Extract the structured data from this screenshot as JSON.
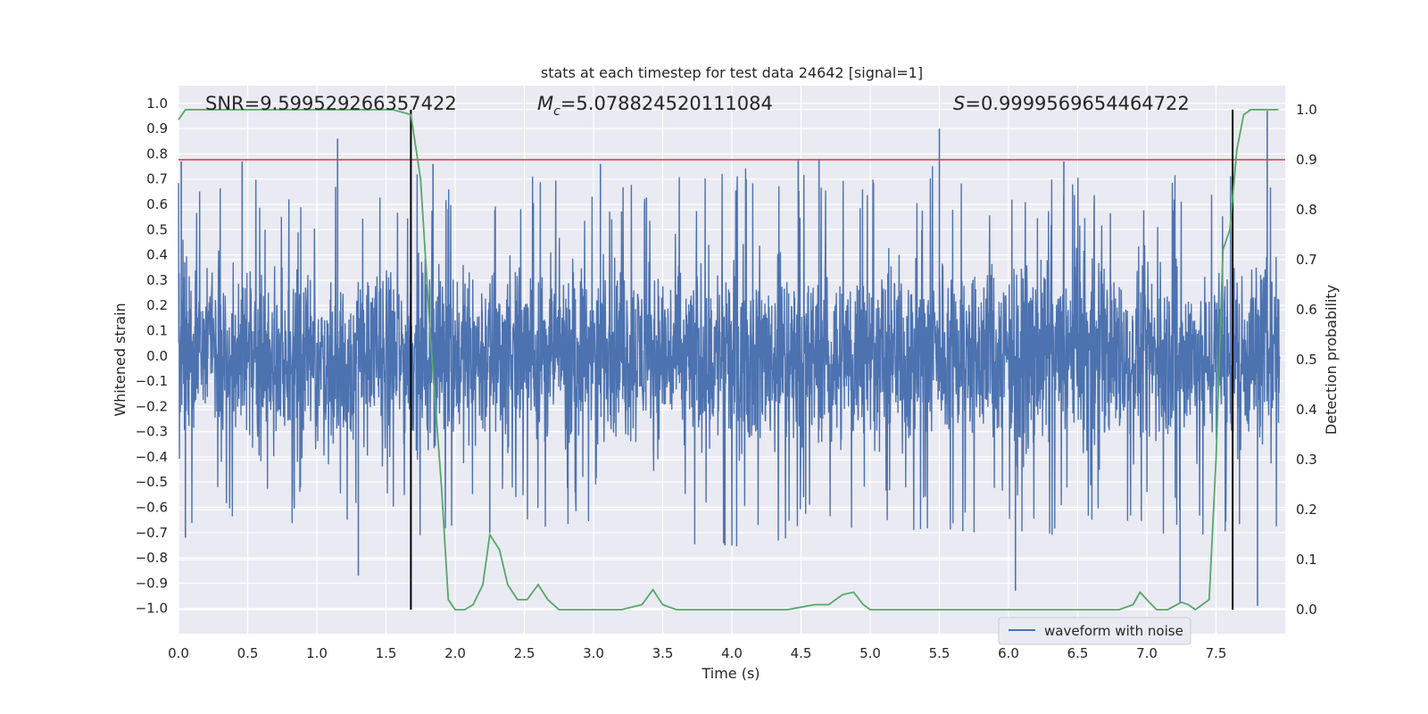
{
  "chart_data": {
    "type": "line",
    "title": "stats at each timestep for test data 24642 [signal=1]",
    "xlabel": "Time (s)",
    "ylabel": "Whitened strain",
    "y2label": "Detection probability",
    "xlim": [
      0.0,
      8.0
    ],
    "ylim": [
      -1.1,
      1.07
    ],
    "y2lim": [
      -0.048,
      1.048
    ],
    "xticks": [
      "0.0",
      "0.5",
      "1.0",
      "1.5",
      "2.0",
      "2.5",
      "3.0",
      "3.5",
      "4.0",
      "4.5",
      "5.0",
      "5.5",
      "6.0",
      "6.5",
      "7.0",
      "7.5"
    ],
    "yticks": [
      "1.0",
      "0.9",
      "0.8",
      "0.7",
      "0.6",
      "0.5",
      "0.4",
      "0.3",
      "0.2",
      "0.1",
      "0.0",
      "-0.1",
      "-0.2",
      "-0.3",
      "-0.4",
      "-0.5",
      "-0.6",
      "-0.7",
      "-0.8",
      "-0.9",
      "-1.0"
    ],
    "y2ticks": [
      "1.0",
      "0.9",
      "0.8",
      "0.7",
      "0.6",
      "0.5",
      "0.4",
      "0.3",
      "0.2",
      "0.1",
      "0.0"
    ],
    "annotations": {
      "snr": "SNR=9.599529266357422",
      "mc_symbol": "M",
      "mc_sub": "c",
      "mc_value": "=5.078824520111084",
      "s_symbol": "S",
      "s_value": "=0.9999569654464722"
    },
    "legend": {
      "label": "waveform with noise",
      "location": "lower-right"
    },
    "threshold_line": {
      "y2": 0.9,
      "color": "#c44e52"
    },
    "signal_bounds_x": [
      1.68,
      7.62
    ],
    "series": [
      {
        "name": "waveform with noise",
        "color": "#4c72b0",
        "description": "dense noisy whitened strain, roughly within ±0.6 with peaks near ±0.9",
        "envelope_x": [
          0.0,
          0.5,
          1.0,
          1.5,
          2.0,
          2.5,
          3.0,
          3.5,
          4.0,
          4.5,
          5.0,
          5.5,
          6.0,
          6.5,
          7.0,
          7.5,
          8.0
        ],
        "upper_envelope": [
          0.6,
          0.6,
          0.55,
          0.6,
          0.6,
          0.6,
          0.6,
          0.6,
          0.65,
          0.6,
          0.6,
          0.65,
          0.6,
          0.6,
          0.6,
          0.6,
          0.65
        ],
        "lower_envelope": [
          -0.6,
          -0.6,
          -0.6,
          -0.6,
          -0.6,
          -0.6,
          -0.55,
          -0.6,
          -0.65,
          -0.6,
          -0.6,
          -0.6,
          -0.6,
          -0.6,
          -0.6,
          -0.6,
          -0.6
        ],
        "peaks": [
          {
            "x": 0.02,
            "y": 0.77
          },
          {
            "x": 0.46,
            "y": 0.77
          },
          {
            "x": 1.15,
            "y": 0.86
          },
          {
            "x": 1.84,
            "y": 0.76
          },
          {
            "x": 3.05,
            "y": 0.76
          },
          {
            "x": 4.48,
            "y": 0.78
          },
          {
            "x": 4.63,
            "y": 0.78
          },
          {
            "x": 5.5,
            "y": 0.9
          },
          {
            "x": 6.4,
            "y": 0.77
          },
          {
            "x": 7.87,
            "y": 0.97
          },
          {
            "x": 0.05,
            "y": -0.72
          },
          {
            "x": 1.3,
            "y": -0.87
          },
          {
            "x": 2.25,
            "y": -0.7
          },
          {
            "x": 3.95,
            "y": -0.75
          },
          {
            "x": 6.05,
            "y": -0.93
          },
          {
            "x": 7.24,
            "y": -0.98
          },
          {
            "x": 7.8,
            "y": -0.99
          }
        ]
      },
      {
        "name": "detection probability",
        "axis": "y2",
        "color": "#55a868",
        "x": [
          0.0,
          0.05,
          0.15,
          0.3,
          0.5,
          0.8,
          1.0,
          1.3,
          1.55,
          1.68,
          1.75,
          1.82,
          1.9,
          1.95,
          2.0,
          2.07,
          2.13,
          2.2,
          2.25,
          2.32,
          2.38,
          2.45,
          2.52,
          2.6,
          2.67,
          2.75,
          2.9,
          3.0,
          3.2,
          3.35,
          3.43,
          3.5,
          3.6,
          3.8,
          4.0,
          4.2,
          4.4,
          4.6,
          4.7,
          4.75,
          4.8,
          4.88,
          4.95,
          5.0,
          5.2,
          5.5,
          6.0,
          6.3,
          6.5,
          6.8,
          6.9,
          6.95,
          7.0,
          7.07,
          7.15,
          7.25,
          7.3,
          7.35,
          7.45,
          7.5,
          7.55,
          7.6,
          7.65,
          7.7,
          7.75,
          7.8,
          7.85,
          7.95
        ],
        "values": [
          0.98,
          1.0,
          1.0,
          1.0,
          1.0,
          1.0,
          1.0,
          1.0,
          1.0,
          0.99,
          0.86,
          0.55,
          0.25,
          0.02,
          0.0,
          0.0,
          0.01,
          0.05,
          0.15,
          0.12,
          0.05,
          0.02,
          0.02,
          0.05,
          0.02,
          0.0,
          0.0,
          0.0,
          0.0,
          0.01,
          0.04,
          0.01,
          0.0,
          0.0,
          0.0,
          0.0,
          0.0,
          0.01,
          0.01,
          0.02,
          0.03,
          0.035,
          0.01,
          0.0,
          0.0,
          0.0,
          0.0,
          0.0,
          0.0,
          0.0,
          0.01,
          0.035,
          0.02,
          0.0,
          0.0,
          0.015,
          0.01,
          0.0,
          0.02,
          0.3,
          0.72,
          0.76,
          0.92,
          0.99,
          1.0,
          1.0,
          1.0,
          1.0
        ]
      }
    ]
  }
}
